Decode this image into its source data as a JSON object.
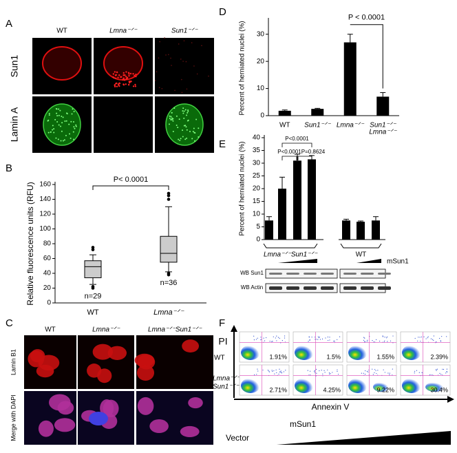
{
  "panel_a": {
    "label": "A",
    "columns": [
      "WT",
      "Lmna⁻ᐟ⁻",
      "Sun1⁻ᐟ⁻"
    ],
    "rows": [
      "Sun1",
      "Lamin A"
    ]
  },
  "panel_c": {
    "label": "C",
    "columns": [
      "WT",
      "Lmna⁻ᐟ⁻",
      "Lmna⁻ᐟ⁻Sun1⁻ᐟ⁻"
    ],
    "rows": [
      "Lamin B1",
      "Merge with DAPI"
    ]
  },
  "panel_f": {
    "label": "F",
    "y_axis": "PI",
    "x_axis": "Annexin V",
    "dose_labels": [
      "Vector",
      "mSun1"
    ],
    "rows": [
      {
        "label": "WT",
        "values": [
          "1.91%",
          "1.5%",
          "1.55%",
          "2.39%"
        ]
      },
      {
        "label": [
          "Lmna⁻ᐟ⁻",
          "Sun1⁻ᐟ⁻"
        ],
        "values": [
          "2.71%",
          "4.25%",
          "9.22%",
          "30.4%"
        ]
      }
    ]
  },
  "chart_data": [
    {
      "type": "box",
      "label": "B",
      "ylabel": "Relative fluorescence units (RFU)",
      "categories": [
        "WT",
        "Lmna⁻ᐟ⁻"
      ],
      "boxes": [
        {
          "whisker_low": 25,
          "q1": 34,
          "median": 49,
          "q3": 57,
          "whisker_high": 65,
          "outliers": [
            75,
            72,
            22,
            20
          ]
        },
        {
          "whisker_low": 42,
          "q1": 55,
          "median": 67,
          "q3": 90,
          "whisker_high": 130,
          "outliers": [
            148,
            145,
            140,
            40,
            38
          ]
        }
      ],
      "count_labels": [
        "n=29",
        "n=36"
      ],
      "annotation": "P< 0.0001",
      "ylim": [
        0,
        160
      ],
      "yticks": [
        0,
        20,
        40,
        60,
        80,
        100,
        120,
        140,
        160
      ],
      "color": "#cccccc"
    },
    {
      "type": "bar",
      "label": "D",
      "ylabel": "Percent of herniated nuclei (%)",
      "categories": [
        "WT",
        "Sun1⁻ᐟ⁻",
        "Lmna⁻ᐟ⁻",
        [
          "Sun1⁻ᐟ⁻",
          "Lmna⁻ᐟ⁻"
        ]
      ],
      "values": [
        1.8,
        2.5,
        27,
        7
      ],
      "errors": [
        0.3,
        0.2,
        3,
        1.5
      ],
      "annotation": "P < 0.0001",
      "ylim": [
        0,
        35
      ],
      "yticks": [
        0,
        10,
        20,
        30
      ],
      "color": "#000000"
    },
    {
      "type": "bar",
      "label": "E",
      "ylabel": "Percent of herniated nuclei (%)",
      "categories": [
        null,
        null,
        null,
        null,
        null,
        null,
        null
      ],
      "values": [
        7.5,
        20,
        31,
        31.5,
        7.5,
        7,
        7.5
      ],
      "errors": [
        1.5,
        4.5,
        2.5,
        1.5,
        0.5,
        0.3,
        1.5
      ],
      "annotations": [
        "P<0.0001",
        "P<0.0001",
        "P=0.8624"
      ],
      "groups": [
        "Lmna⁻ᐟ⁻Sun1⁻ᐟ⁻",
        "WT"
      ],
      "dose_label": "mSun1",
      "blot_labels": [
        "WB Sun1",
        "WB Actin"
      ],
      "ylim": [
        0,
        40
      ],
      "yticks": [
        0,
        5,
        10,
        15,
        20,
        25,
        30,
        35,
        40
      ],
      "color": "#000000"
    }
  ]
}
